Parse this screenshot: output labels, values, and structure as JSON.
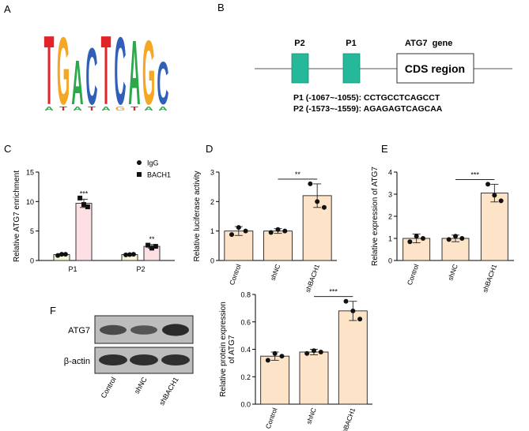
{
  "panels": {
    "A": "A",
    "B": "B",
    "C": "C",
    "D": "D",
    "E": "E",
    "F": "F"
  },
  "motif": {
    "letters": [
      "T",
      "G",
      "A",
      "C",
      "T",
      "C",
      "A",
      "G",
      "C"
    ],
    "colors": {
      "T": "#e0242a",
      "G": "#f5a623",
      "A": "#2aa84a",
      "C": "#2f5fb8"
    }
  },
  "gene_diagram": {
    "p2_label": "P2",
    "p1_label": "P1",
    "gene_label": "ATG7  gene",
    "cds_label": "CDS region",
    "line1": "P1 (-1067~-1055): CCTGCCTCAGCCT",
    "line2": "P2 (-1573~-1559): AGAGAGTCAGCAA",
    "exon_color": "#25b89b"
  },
  "western": {
    "atg7_label": "ATG7",
    "actin_label": "β-actin",
    "lanes": [
      "Control",
      "shNC",
      "shBACH1"
    ],
    "atg7_intensity": [
      0.55,
      0.45,
      0.9
    ],
    "actin_intensity": [
      0.85,
      0.85,
      0.85
    ]
  },
  "chart_data": [
    {
      "id": "C",
      "type": "bar",
      "categories": [
        "P1",
        "P2"
      ],
      "series": [
        {
          "name": "IgG",
          "values": [
            1.0,
            1.0
          ],
          "err": [
            0.15,
            0.15
          ],
          "color": "#f7f7d6",
          "points": [
            [
              0.85,
              1.05,
              1.05
            ],
            [
              0.95,
              1.0,
              1.05
            ]
          ]
        },
        {
          "name": "BACH1",
          "values": [
            9.7,
            2.4
          ],
          "err": [
            0.7,
            0.3
          ],
          "color": "#fde0e4",
          "points": [
            [
              10.6,
              9.5,
              9.1
            ],
            [
              2.6,
              2.1,
              2.4
            ]
          ]
        }
      ],
      "significance": [
        "***",
        "**"
      ],
      "ylabel": "Relative ATG7 enrichment",
      "ylim": [
        0,
        15
      ],
      "yticks": [
        "0",
        "5",
        "10",
        "15"
      ]
    },
    {
      "id": "D",
      "type": "bar",
      "categories": [
        "Control",
        "shNC",
        "shBACH1"
      ],
      "values": [
        1.0,
        1.0,
        2.2
      ],
      "err": [
        0.15,
        0.08,
        0.4
      ],
      "points": [
        [
          0.88,
          1.12,
          1.0
        ],
        [
          0.95,
          1.05,
          1.0
        ],
        [
          2.6,
          2.0,
          1.8
        ]
      ],
      "color": "#fde4c8",
      "significance": "**",
      "ylabel": "Relative luciferase activity",
      "ylim": [
        0,
        3
      ],
      "yticks": [
        "0",
        "1",
        "2",
        "3"
      ]
    },
    {
      "id": "E",
      "type": "bar",
      "categories": [
        "Control",
        "shNC",
        "shBACH1"
      ],
      "values": [
        1.0,
        1.0,
        3.05
      ],
      "err": [
        0.2,
        0.15,
        0.4
      ],
      "points": [
        [
          0.85,
          1.1,
          1.0
        ],
        [
          0.95,
          1.1,
          1.0
        ],
        [
          3.45,
          2.95,
          2.7
        ]
      ],
      "color": "#fde4c8",
      "significance": "***",
      "ylabel": "Relative expression of ATG7",
      "ylim": [
        0,
        4
      ],
      "yticks": [
        "0",
        "1",
        "2",
        "3",
        "4"
      ]
    },
    {
      "id": "F",
      "type": "bar",
      "categories": [
        "Control",
        "shNC",
        "shBACH1"
      ],
      "values": [
        0.35,
        0.38,
        0.68
      ],
      "err": [
        0.03,
        0.02,
        0.07
      ],
      "points": [
        [
          0.32,
          0.37,
          0.35
        ],
        [
          0.37,
          0.39,
          0.38
        ],
        [
          0.75,
          0.68,
          0.62
        ]
      ],
      "color": "#fde4c8",
      "significance": "***",
      "ylabel": "Relative protein expression\nof ATG7",
      "ylim": [
        0,
        0.8
      ],
      "yticks": [
        "0.0",
        "0.2",
        "0.4",
        "0.6",
        "0.8"
      ]
    }
  ]
}
